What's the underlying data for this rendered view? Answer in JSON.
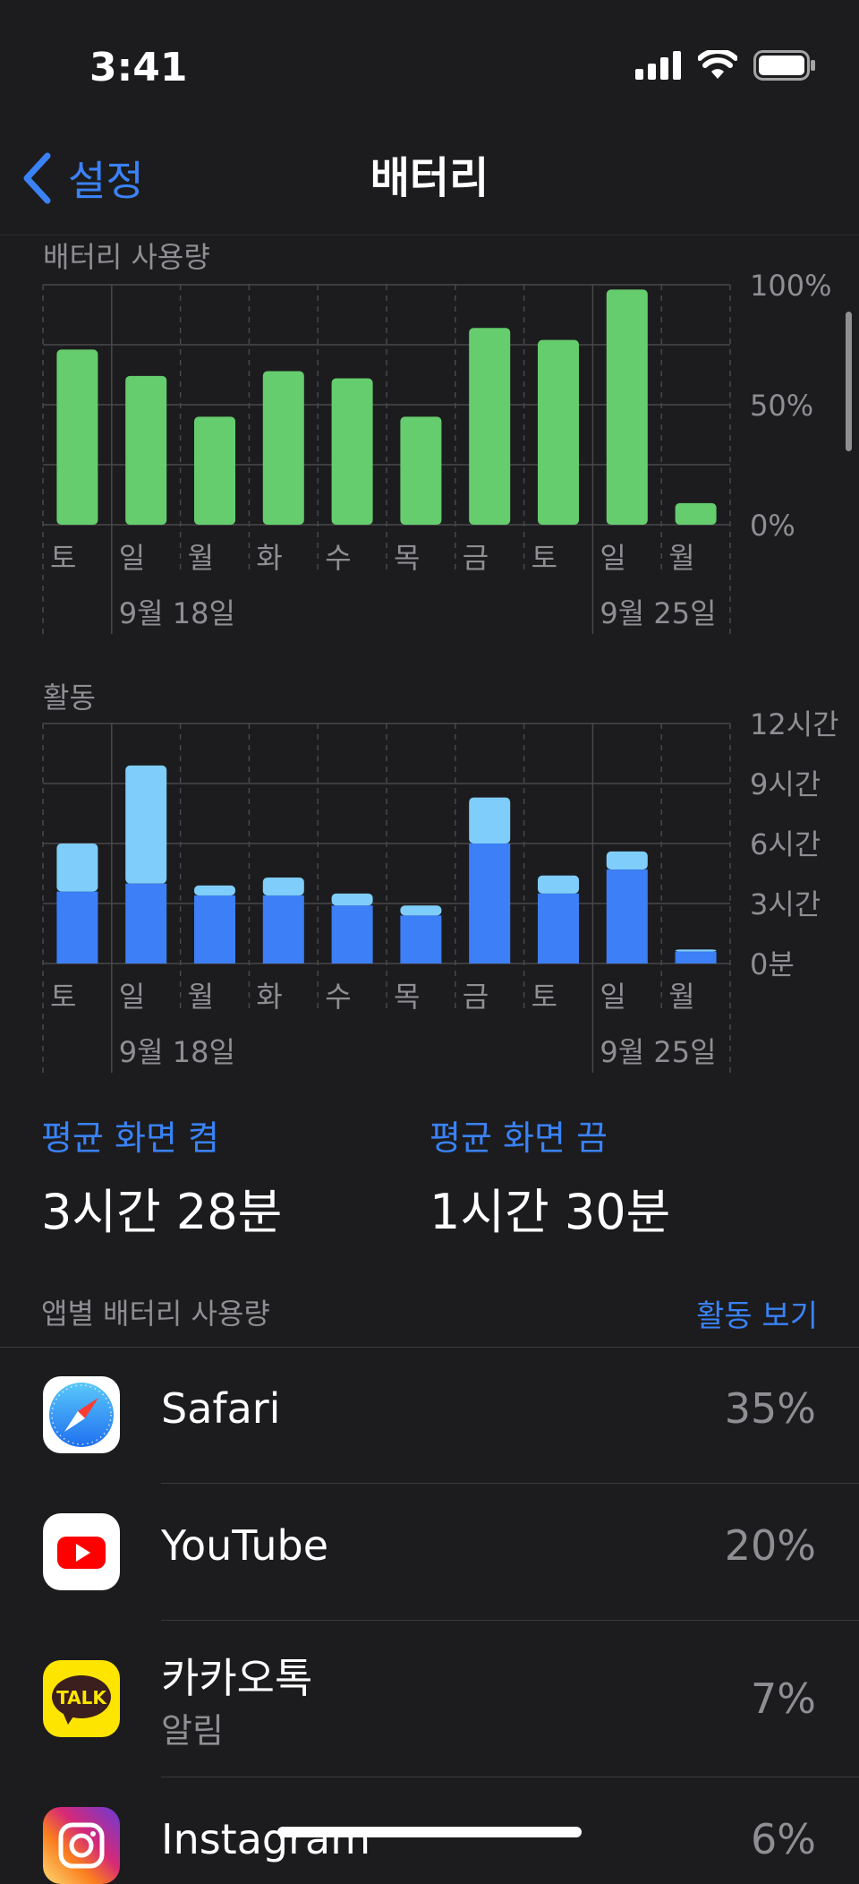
{
  "status": {
    "time": "3:41"
  },
  "nav": {
    "back_label": "설정",
    "title": "배터리"
  },
  "battery_usage": {
    "label": "배터리 사용량"
  },
  "activity": {
    "label": "활동"
  },
  "chart_data": [
    {
      "type": "bar",
      "categories": [
        "토",
        "일",
        "월",
        "화",
        "수",
        "목",
        "금",
        "토",
        "일",
        "월"
      ],
      "values": [
        73,
        62,
        45,
        64,
        61,
        45,
        82,
        77,
        98,
        9
      ],
      "ylim": [
        0,
        100
      ],
      "y_ticks": [
        "100%",
        "50%",
        "0%"
      ],
      "date_labels": [
        "9월 18일",
        "9월 25일"
      ],
      "color": "#65cd6d",
      "grid": true
    },
    {
      "type": "bar",
      "stacked": true,
      "categories": [
        "토",
        "일",
        "월",
        "화",
        "수",
        "목",
        "금",
        "토",
        "일",
        "월"
      ],
      "series": [
        {
          "values": [
            3.6,
            4.0,
            3.4,
            3.4,
            2.9,
            2.4,
            6.0,
            3.5,
            4.7,
            0.6
          ],
          "color": "#3d7ff6"
        },
        {
          "values": [
            2.4,
            5.9,
            0.5,
            0.9,
            0.6,
            0.5,
            2.3,
            0.9,
            0.9,
            0.1
          ],
          "color": "#7fcdfb"
        }
      ],
      "ylim": [
        0,
        12
      ],
      "y_ticks": [
        "12시간",
        "9시간",
        "6시간",
        "3시간",
        "0분"
      ],
      "date_labels": [
        "9월 18일",
        "9월 25일"
      ],
      "grid": true
    }
  ],
  "averages": {
    "screen_on_label": "평균 화면 켬",
    "screen_on_value": "3시간 28분",
    "screen_off_label": "평균 화면 끔",
    "screen_off_value": "1시간 30분"
  },
  "apps": {
    "header": "앱별 배터리 사용량",
    "view_activity": "활동 보기",
    "items": [
      {
        "name": "Safari",
        "percent": "35%",
        "icon": "safari-icon"
      },
      {
        "name": "YouTube",
        "percent": "20%",
        "icon": "youtube-icon"
      },
      {
        "name": "카카오톡",
        "sub": "알림",
        "percent": "7%",
        "icon": "kakaotalk-icon",
        "icon_text": "TALK"
      },
      {
        "name": "Instagram",
        "percent": "6%",
        "icon": "instagram-icon"
      }
    ]
  }
}
